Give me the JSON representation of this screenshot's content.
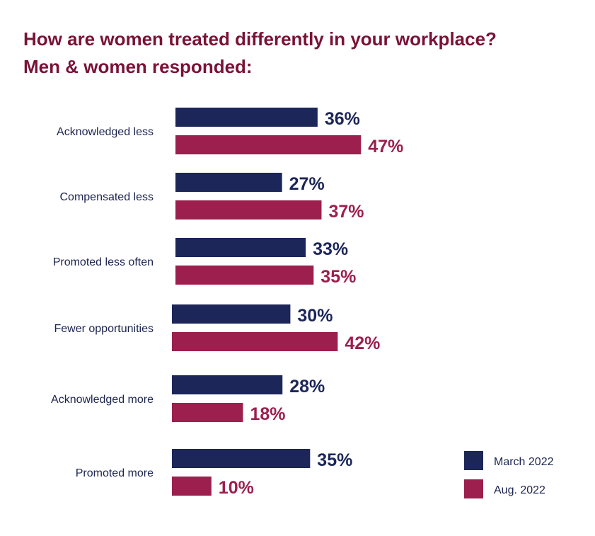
{
  "chart_data": {
    "type": "bar",
    "orientation": "horizontal",
    "title": "How are women treated differently in your workplace?",
    "subtitle": "Men & women responded:",
    "categories": [
      "Acknowledged less",
      "Compensated less",
      "Promoted less often",
      "Fewer opportunities",
      "Acknowledged more",
      "Promoted more"
    ],
    "series": [
      {
        "name": "March 2022",
        "color": "#1c2659",
        "values": [
          36,
          27,
          33,
          30,
          28,
          35
        ],
        "labels": [
          "36%",
          "27%",
          "33%",
          "30%",
          "28%",
          "35%"
        ]
      },
      {
        "name": "Aug. 2022",
        "color": "#9c1f4d",
        "values": [
          47,
          37,
          35,
          42,
          18,
          10
        ],
        "labels": [
          "47%",
          "37%",
          "35%",
          "42%",
          "18%",
          "10%"
        ]
      }
    ],
    "value_unit": "%",
    "grid": false,
    "axes_visible": false,
    "legend_position": "bottom-right",
    "title_color": "#7a1237"
  }
}
